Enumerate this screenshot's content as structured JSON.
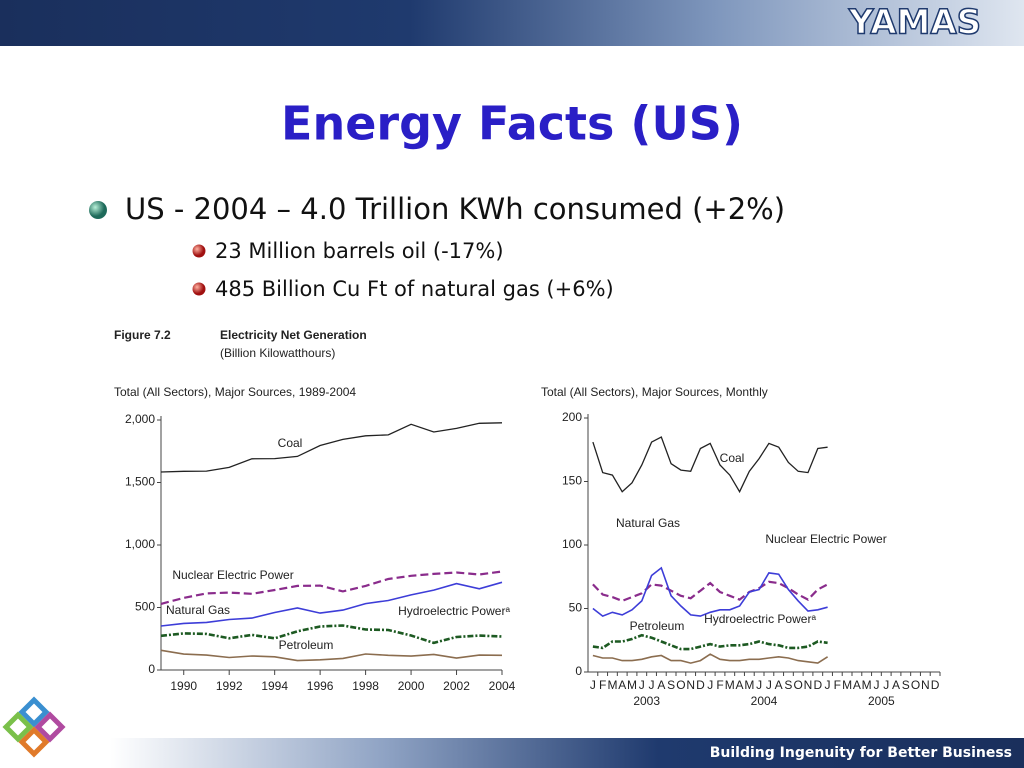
{
  "slide": {
    "logo": "YAMAS",
    "title": "Energy Facts (US)",
    "bullet": "US - 2004 – 4.0 Trillion KWh consumed (+2%)",
    "sub_bullets": [
      "23 Million barrels oil (-17%)",
      "485 Billion Cu Ft of natural gas (+6%)"
    ],
    "figure_number": "Figure 7.2",
    "figure_title": "Electricity Net Generation",
    "figure_units": "(Billion Kilowatthours)",
    "footer": "Building Ingenuity for Better Business"
  },
  "chart_data": [
    {
      "type": "line",
      "title": "Total (All Sectors), Major Sources, 1989-2004",
      "x": [
        1989,
        1990,
        1991,
        1992,
        1993,
        1994,
        1995,
        1996,
        1997,
        1998,
        1999,
        2000,
        2001,
        2002,
        2003,
        2004
      ],
      "xlim": [
        1989,
        2004
      ],
      "xticks": [
        1990,
        1992,
        1994,
        1996,
        1998,
        2000,
        2002,
        2004
      ],
      "ylim": [
        0,
        2000
      ],
      "yticks": [
        0,
        500,
        {
          "value": 1000,
          "label": "1,000"
        },
        {
          "value": 1500,
          "label": "1,500"
        },
        {
          "value": 2000,
          "label": "2,000"
        }
      ],
      "series": [
        {
          "name": "Coal",
          "color": "#222222",
          "values": [
            1584,
            1590,
            1591,
            1621,
            1690,
            1691,
            1709,
            1796,
            1845,
            1874,
            1881,
            1966,
            1904,
            1933,
            1974,
            1978
          ]
        },
        {
          "name": "Nuclear Electric Power",
          "color": "#8a2c8c",
          "values": [
            529,
            577,
            613,
            619,
            610,
            640,
            673,
            675,
            629,
            673,
            728,
            754,
            769,
            780,
            764,
            788
          ]
        },
        {
          "name": "Natural Gas",
          "color": "#3d3dd8",
          "values": [
            352,
            373,
            381,
            404,
            415,
            460,
            496,
            455,
            479,
            531,
            556,
            601,
            639,
            691,
            650,
            702
          ]
        },
        {
          "name": "Hydroelectric Powerᵃ",
          "color": "#1d5a22",
          "values": [
            274,
            293,
            289,
            254,
            281,
            254,
            310,
            348,
            356,
            324,
            320,
            276,
            217,
            264,
            275,
            268
          ]
        },
        {
          "name": "Petroleum",
          "color": "#8b6d4f",
          "values": [
            158,
            127,
            119,
            100,
            112,
            106,
            75,
            82,
            93,
            128,
            118,
            111,
            125,
            95,
            119,
            118
          ]
        }
      ]
    },
    {
      "type": "line",
      "title": "Total (All Sectors), Major Sources, Monthly",
      "categories": [
        "J",
        "F",
        "M",
        "A",
        "M",
        "J",
        "J",
        "A",
        "S",
        "O",
        "N",
        "D",
        "J",
        "F",
        "M",
        "A",
        "M",
        "J",
        "J",
        "A",
        "S",
        "O",
        "N",
        "D",
        "J",
        "F",
        "M",
        "A",
        "M",
        "J",
        "J",
        "A",
        "S",
        "O",
        "N",
        "D"
      ],
      "year_labels": [
        "2003",
        "2004",
        "2005"
      ],
      "ylim": [
        0,
        200
      ],
      "yticks": [
        0,
        50,
        100,
        150,
        200
      ],
      "series": [
        {
          "name": "Coal",
          "color": "#222222",
          "values": [
            181,
            157,
            155,
            142,
            149,
            163,
            181,
            185,
            164,
            159,
            158,
            176,
            180,
            163,
            155,
            142,
            158,
            168,
            180,
            177,
            165,
            158,
            157,
            176,
            177,
            null,
            null,
            null,
            null,
            null,
            null,
            null,
            null,
            null,
            null,
            null
          ]
        },
        {
          "name": "Nuclear Electric Power",
          "color": "#8a2c8c",
          "values": [
            69,
            61,
            59,
            56,
            59,
            62,
            69,
            68,
            64,
            60,
            58,
            64,
            70,
            63,
            60,
            57,
            63,
            66,
            71,
            70,
            66,
            61,
            57,
            65,
            69,
            null,
            null,
            null,
            null,
            null,
            null,
            null,
            null,
            null,
            null,
            null
          ]
        },
        {
          "name": "Natural Gas",
          "color": "#3d3dd8",
          "values": [
            50,
            44,
            47,
            45,
            49,
            56,
            76,
            82,
            60,
            52,
            45,
            44,
            47,
            49,
            49,
            52,
            63,
            65,
            78,
            77,
            65,
            56,
            48,
            49,
            51,
            null,
            null,
            null,
            null,
            null,
            null,
            null,
            null,
            null,
            null,
            null
          ]
        },
        {
          "name": "Hydroelectric Powerᵃ",
          "color": "#1d5a22",
          "values": [
            20,
            19,
            24,
            24,
            26,
            29,
            27,
            24,
            21,
            18,
            18,
            20,
            22,
            20,
            21,
            21,
            22,
            24,
            22,
            21,
            19,
            19,
            20,
            24,
            23,
            null,
            null,
            null,
            null,
            null,
            null,
            null,
            null,
            null,
            null,
            null
          ]
        },
        {
          "name": "Petroleum",
          "color": "#8b6d4f",
          "values": [
            13,
            11,
            11,
            9,
            9,
            10,
            12,
            13,
            9,
            9,
            7,
            9,
            14,
            10,
            9,
            9,
            10,
            10,
            11,
            12,
            11,
            9,
            8,
            7,
            12,
            null,
            null,
            null,
            null,
            null,
            null,
            null,
            null,
            null,
            null,
            null
          ]
        }
      ]
    }
  ]
}
